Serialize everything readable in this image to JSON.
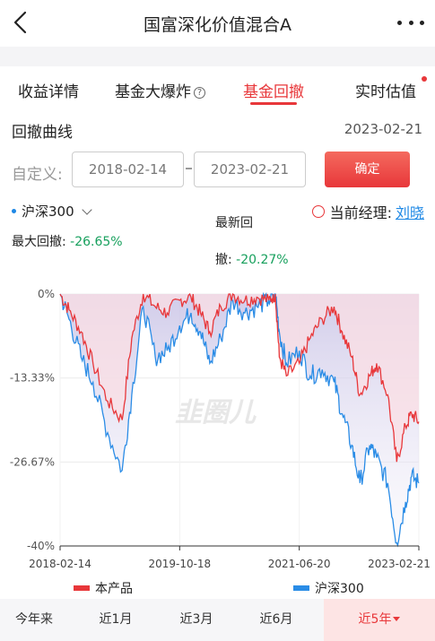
{
  "header": {
    "title": "国富深化价值混合A"
  },
  "tabs": [
    {
      "label": "收益详情"
    },
    {
      "label": "基金大爆炸"
    },
    {
      "label": "基金回撤"
    },
    {
      "label": "实时估值"
    }
  ],
  "active_tab": "基金回撤",
  "section": {
    "title": "回撤曲线",
    "date": "2023-02-21"
  },
  "range": {
    "label": "自定义:",
    "start": "2018-02-14",
    "end": "2023-02-21",
    "confirm": "确定"
  },
  "index_selector": {
    "label": "沪深300"
  },
  "manager": {
    "label": "当前经理:",
    "name": "刘晓"
  },
  "stats": {
    "max_label": "最大回撤:",
    "max_value": "-26.65%",
    "latest_label_1": "最新回",
    "latest_label_2": "撤:",
    "latest_value": "-20.27%"
  },
  "chart_data": {
    "type": "line",
    "y_ticks": [
      "0%",
      "-13.33%",
      "-26.67%",
      "-40%"
    ],
    "ylim": [
      -40,
      0
    ],
    "x_ticks": [
      "2018-02-14",
      "2019-10-18",
      "2021-06-20",
      "2023-02-21"
    ],
    "watermark": "韭圈儿",
    "colors": {
      "product": "#e8373a",
      "index": "#2a8ce6"
    },
    "series": [
      {
        "name": "本产品",
        "dates": [
          "2018-02-14",
          "2018-04-01",
          "2018-06-01",
          "2018-08-01",
          "2018-10-15",
          "2018-12-28",
          "2019-02-15",
          "2019-04-15",
          "2019-06-15",
          "2019-08-15",
          "2019-10-18",
          "2019-12-15",
          "2020-02-01",
          "2020-03-20",
          "2020-05-15",
          "2020-07-15",
          "2020-09-15",
          "2020-11-15",
          "2021-01-15",
          "2021-02-18",
          "2021-03-10",
          "2021-04-15",
          "2021-06-20",
          "2021-08-15",
          "2021-10-15",
          "2021-12-15",
          "2022-01-25",
          "2022-03-15",
          "2022-04-26",
          "2022-06-15",
          "2022-07-20",
          "2022-09-15",
          "2022-10-31",
          "2022-12-15",
          "2023-01-15",
          "2023-02-21"
        ],
        "values": [
          0,
          -2.5,
          -6,
          -11,
          -17,
          -20,
          -7,
          0,
          -2,
          -3,
          -1,
          -0.5,
          -3,
          -6,
          -2,
          0,
          -1,
          -0.5,
          -1,
          0,
          -10,
          -13,
          -11,
          -7,
          -4,
          -2,
          -6,
          -10,
          -16,
          -13,
          -11,
          -16,
          -26.65,
          -21,
          -19,
          -20.27
        ]
      },
      {
        "name": "沪深300",
        "dates": [
          "2018-02-14",
          "2018-04-01",
          "2018-06-01",
          "2018-08-01",
          "2018-10-15",
          "2018-12-28",
          "2019-02-15",
          "2019-04-15",
          "2019-06-15",
          "2019-08-15",
          "2019-10-18",
          "2019-12-15",
          "2020-02-01",
          "2020-03-20",
          "2020-05-15",
          "2020-07-15",
          "2020-09-15",
          "2020-11-15",
          "2021-01-15",
          "2021-02-18",
          "2021-03-10",
          "2021-04-15",
          "2021-06-20",
          "2021-08-15",
          "2021-10-15",
          "2021-12-15",
          "2022-01-25",
          "2022-03-15",
          "2022-04-26",
          "2022-06-15",
          "2022-07-20",
          "2022-09-15",
          "2022-10-31",
          "2022-12-15",
          "2023-01-15",
          "2023-02-21"
        ],
        "values": [
          0,
          -4,
          -10,
          -14,
          -22,
          -28,
          -16,
          -2,
          -10,
          -9,
          -5,
          -3,
          -6,
          -11,
          -7,
          -1,
          -3,
          -2,
          -1,
          0,
          -6,
          -11,
          -9,
          -13,
          -12,
          -14,
          -19,
          -24,
          -30,
          -24,
          -26,
          -30,
          -39.5,
          -33,
          -29,
          -30
        ]
      }
    ]
  },
  "periods": [
    {
      "label": "今年来"
    },
    {
      "label": "近1月"
    },
    {
      "label": "近3月"
    },
    {
      "label": "近6月"
    },
    {
      "label": "近5年"
    }
  ]
}
